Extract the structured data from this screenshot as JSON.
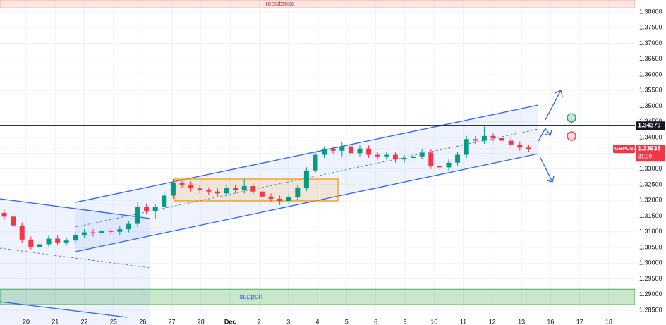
{
  "chart_data": {
    "type": "candlestick",
    "symbol": "GBPUSD",
    "ylim": [
      1.2803,
      1.3838
    ],
    "yticks": [
      {
        "value": 1.38,
        "label": "1.38000"
      },
      {
        "value": 1.375,
        "label": "1.37500"
      },
      {
        "value": 1.37,
        "label": "1.37000"
      },
      {
        "value": 1.365,
        "label": "1.36500"
      },
      {
        "value": 1.36,
        "label": "1.36000"
      },
      {
        "value": 1.355,
        "label": "1.35500"
      },
      {
        "value": 1.35,
        "label": "1.35000"
      },
      {
        "value": 1.345,
        "label": "1.34500"
      },
      {
        "value": 1.34,
        "label": "1.34000"
      },
      {
        "value": 1.335,
        "label": "1.33500"
      },
      {
        "value": 1.33,
        "label": "1.33000"
      },
      {
        "value": 1.325,
        "label": "1.32500"
      },
      {
        "value": 1.32,
        "label": "1.32000"
      },
      {
        "value": 1.315,
        "label": "1.31500"
      },
      {
        "value": 1.31,
        "label": "1.31000"
      },
      {
        "value": 1.305,
        "label": "1.30500"
      },
      {
        "value": 1.3,
        "label": "1.30000"
      },
      {
        "value": 1.295,
        "label": "1.29500"
      },
      {
        "value": 1.29,
        "label": "1.29000"
      },
      {
        "value": 1.285,
        "label": "1.28500"
      }
    ],
    "categories": [
      "20",
      "21",
      "22",
      "25",
      "26",
      "27",
      "28",
      "Dec",
      "2",
      "3",
      "4",
      "5",
      "6",
      "9",
      "10",
      "11",
      "12",
      "13",
      "16",
      "17",
      "18"
    ],
    "up_color": "#089981",
    "down_color": "#f23645",
    "open": [
      1.316,
      1.3148,
      1.312,
      1.3075,
      1.3052,
      1.306,
      1.3078,
      1.3066,
      1.3072,
      1.309,
      1.3098,
      1.3095,
      1.3102,
      1.31,
      1.3108,
      1.3125,
      1.318,
      1.3165,
      1.3178,
      1.3215,
      1.3255,
      1.325,
      1.3238,
      1.3232,
      1.3228,
      1.3222,
      1.324,
      1.3232,
      1.3245,
      1.3228,
      1.3212,
      1.3205,
      1.3198,
      1.321,
      1.324,
      1.3295,
      1.3345,
      1.3362,
      1.3358,
      1.3372,
      1.335,
      1.3365,
      1.3345,
      1.334,
      1.3345,
      1.333,
      1.3335,
      1.334,
      1.3352,
      1.331,
      1.3305,
      1.332,
      1.3345,
      1.3395,
      1.339,
      1.3405,
      1.3398,
      1.339,
      1.3378,
      1.3368
    ],
    "high": [
      1.317,
      1.3158,
      1.313,
      1.3085,
      1.307,
      1.3088,
      1.3088,
      1.3082,
      1.31,
      1.3108,
      1.3108,
      1.3112,
      1.3112,
      1.3118,
      1.3135,
      1.3195,
      1.319,
      1.3188,
      1.3225,
      1.3268,
      1.3265,
      1.326,
      1.3248,
      1.3242,
      1.3238,
      1.325,
      1.325,
      1.3268,
      1.3255,
      1.3238,
      1.3222,
      1.3215,
      1.322,
      1.325,
      1.3305,
      1.3355,
      1.3372,
      1.3372,
      1.3385,
      1.3382,
      1.3375,
      1.3375,
      1.3355,
      1.3355,
      1.3355,
      1.3345,
      1.335,
      1.3362,
      1.3362,
      1.332,
      1.333,
      1.3355,
      1.3405,
      1.3405,
      1.3435,
      1.3415,
      1.3408,
      1.34,
      1.3388,
      1.3378
    ],
    "low": [
      1.3138,
      1.311,
      1.3065,
      1.3042,
      1.3042,
      1.305,
      1.3056,
      1.3056,
      1.3062,
      1.308,
      1.3085,
      1.3085,
      1.309,
      1.309,
      1.3098,
      1.3115,
      1.3155,
      1.314,
      1.3168,
      1.3205,
      1.324,
      1.3228,
      1.3222,
      1.3218,
      1.3212,
      1.3212,
      1.3222,
      1.3222,
      1.3218,
      1.3202,
      1.3195,
      1.3185,
      1.3188,
      1.32,
      1.323,
      1.3285,
      1.3335,
      1.3348,
      1.334,
      1.334,
      1.334,
      1.3335,
      1.333,
      1.333,
      1.332,
      1.332,
      1.3325,
      1.333,
      1.33,
      1.3295,
      1.3295,
      1.331,
      1.3335,
      1.338,
      1.338,
      1.3388,
      1.338,
      1.3368,
      1.3358,
      1.3354
    ],
    "close": [
      1.3148,
      1.312,
      1.3075,
      1.3052,
      1.306,
      1.3078,
      1.3066,
      1.3072,
      1.309,
      1.3098,
      1.3095,
      1.3102,
      1.31,
      1.3108,
      1.3125,
      1.318,
      1.3165,
      1.3178,
      1.3215,
      1.3255,
      1.325,
      1.3238,
      1.3232,
      1.3228,
      1.3222,
      1.324,
      1.3232,
      1.3245,
      1.3228,
      1.3212,
      1.3205,
      1.3198,
      1.321,
      1.324,
      1.3295,
      1.3345,
      1.3362,
      1.3358,
      1.3372,
      1.335,
      1.3365,
      1.3345,
      1.334,
      1.3345,
      1.333,
      1.3335,
      1.334,
      1.3352,
      1.331,
      1.3305,
      1.332,
      1.3345,
      1.3395,
      1.339,
      1.3405,
      1.3398,
      1.339,
      1.3378,
      1.3368,
      1.3364
    ],
    "zones": [
      {
        "label": "resistance",
        "from": 1.3813,
        "to": 1.3838,
        "color": "#f7a9a0"
      },
      {
        "label": "support",
        "from": 1.2868,
        "to": 1.2917,
        "color": "#4caf50"
      }
    ],
    "price_line": {
      "value": 1.34379,
      "label": "1.34379"
    },
    "last_price": {
      "value": 1.33638,
      "label": "1.33638",
      "countdown": "31:29"
    }
  }
}
